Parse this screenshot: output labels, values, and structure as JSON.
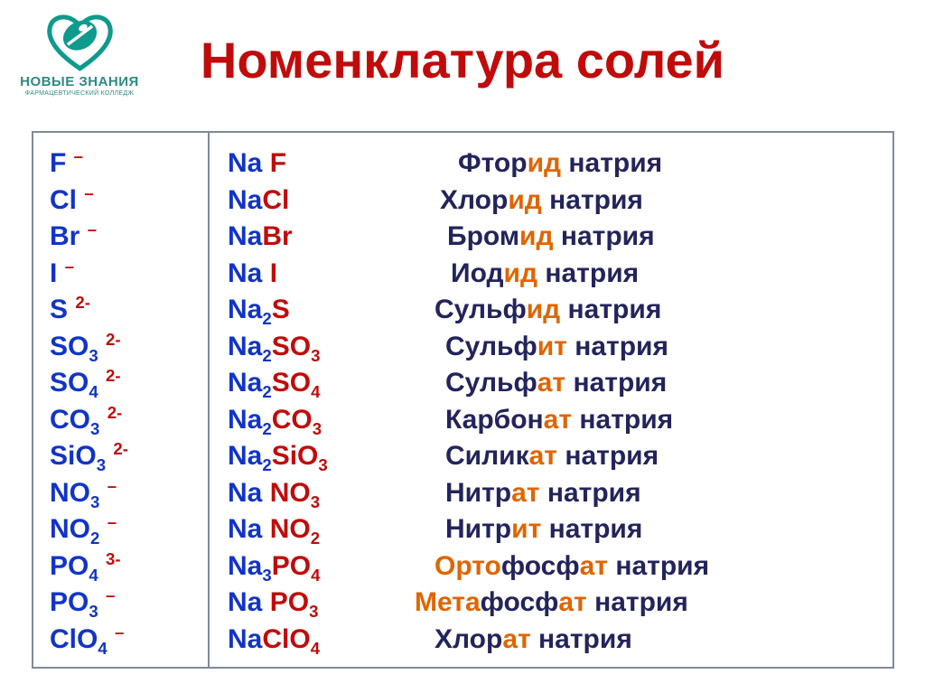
{
  "colors": {
    "title": "#c10b0b",
    "ion_blue": "#1134c8",
    "ion_red": "#c10b0b",
    "formula_na": "#1134c8",
    "formula_anion": "#c10b0b",
    "name_dark": "#23245b",
    "name_highlight": "#e06500",
    "logo_teal": "#0e9a8d",
    "logo_text": "#2e8b7f",
    "border": "#7d8b99"
  },
  "logo": {
    "line1": "НОВЫЕ ЗНАНИЯ",
    "line2": "ФАРМАЦЕВТИЧЕСКИЙ КОЛЛЕДЖ"
  },
  "title": "Номенклатура солей",
  "ions": [
    {
      "sym": "F",
      "sub": "",
      "charge": "–"
    },
    {
      "sym": "Cl",
      "sub": "",
      "charge": "–"
    },
    {
      "sym": "Br",
      "sub": "",
      "charge": "–"
    },
    {
      "sym": "I",
      "sub": "",
      "charge": "–"
    },
    {
      "sym": "S",
      "sub": "",
      "charge": "2-"
    },
    {
      "sym": "SO",
      "sub": "3",
      "charge": "2-"
    },
    {
      "sym": "SO",
      "sub": "4",
      "charge": "2-"
    },
    {
      "sym": "CO",
      "sub": "3",
      "charge": "2-"
    },
    {
      "sym": "SiO",
      "sub": "3",
      "charge": "2-"
    },
    {
      "sym": "NO",
      "sub": "3",
      "charge": "–"
    },
    {
      "sym": "NO",
      "sub": "2",
      "charge": "–"
    },
    {
      "sym": "PO",
      "sub": "4",
      "charge": "3-"
    },
    {
      "sym": "PO",
      "sub": "3",
      "charge": "–"
    },
    {
      "sym": "ClO",
      "sub": "4",
      "charge": "–"
    }
  ],
  "salts": [
    {
      "cation": "Na",
      "csub": "",
      "gap": " ",
      "anion": "F",
      "asub": "",
      "pre": "",
      "root": "Фтор",
      "hl": "ид",
      "post": " натрия"
    },
    {
      "cation": "Na",
      "csub": "",
      "gap": "",
      "anion": "Cl",
      "asub": "",
      "pre": "",
      "root": "Хлор",
      "hl": "ид",
      "post": " натрия"
    },
    {
      "cation": "Na",
      "csub": "",
      "gap": "",
      "anion": "Br",
      "asub": "",
      "pre": "",
      "root": "Бром",
      "hl": "ид",
      "post": " натрия"
    },
    {
      "cation": "Na",
      "csub": "",
      "gap": " ",
      "anion": "I",
      "asub": "",
      "pre": "",
      "root": "Иод",
      "hl": "ид",
      "post": " натрия"
    },
    {
      "cation": "Na",
      "csub": "2",
      "gap": "",
      "anion": "S",
      "asub": "",
      "pre": "",
      "root": "Сульф",
      "hl": "ид",
      "post": " натрия"
    },
    {
      "cation": "Na",
      "csub": "2",
      "gap": "",
      "anion": "SO",
      "asub": "3",
      "pre": "",
      "root": "Сульф",
      "hl": "ит",
      "post": " натрия"
    },
    {
      "cation": "Na",
      "csub": "2",
      "gap": "",
      "anion": "SO",
      "asub": "4",
      "pre": "",
      "root": "Сульф",
      "hl": "ат",
      "post": " натрия"
    },
    {
      "cation": "Na",
      "csub": "2",
      "gap": "",
      "anion": "CO",
      "asub": "3",
      "pre": "",
      "root": "Карбон",
      "hl": "ат",
      "post": " натрия"
    },
    {
      "cation": "Na",
      "csub": "2",
      "gap": "",
      "anion": "SiO",
      "asub": "3",
      "pre": "",
      "root": "Силик",
      "hl": "ат",
      "post": " натрия"
    },
    {
      "cation": "Na",
      "csub": "",
      "gap": " ",
      "anion": "NO",
      "asub": "3",
      "pre": "",
      "root": "Нитр",
      "hl": "ат",
      "post": " натрия"
    },
    {
      "cation": "Na",
      "csub": "",
      "gap": " ",
      "anion": "NO",
      "asub": "2",
      "pre": "",
      "root": "Нитр",
      "hl": "ит",
      "post": " натрия"
    },
    {
      "cation": "Na",
      "csub": "3",
      "gap": "",
      "anion": "PO",
      "asub": "4",
      "pre": "Орто",
      "root": "фосф",
      "hl": "ат",
      "post": " натрия"
    },
    {
      "cation": "Na",
      "csub": "",
      "gap": " ",
      "anion": "PO",
      "asub": "3",
      "pre": "Мета",
      "root": "фосф",
      "hl": "ат",
      "post": " натрия"
    },
    {
      "cation": "Na",
      "csub": "",
      "gap": "",
      "anion": "ClO",
      "asub": "4",
      "pre": "",
      "root": "Хлор",
      "hl": "ат",
      "post": " натрия"
    }
  ],
  "name_offsets": [
    20,
    0,
    8,
    12,
    -6,
    6,
    6,
    6,
    6,
    6,
    6,
    -6,
    -28,
    -6
  ]
}
